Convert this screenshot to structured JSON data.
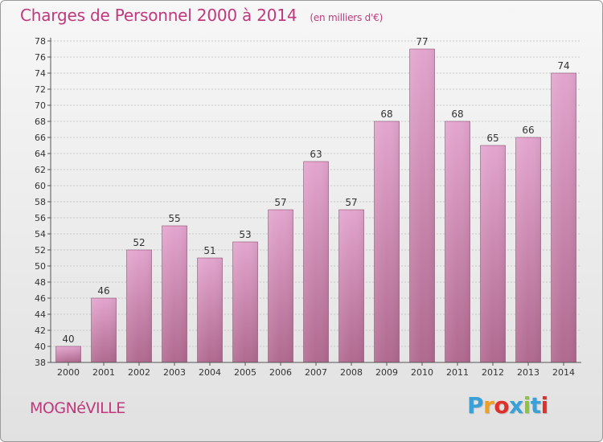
{
  "chart_data": {
    "type": "bar",
    "title": "Charges de Personnel 2000 à 2014",
    "subtitle": "(en milliers d'€)",
    "categories": [
      "2000",
      "2001",
      "2002",
      "2003",
      "2004",
      "2005",
      "2006",
      "2007",
      "2008",
      "2009",
      "2010",
      "2011",
      "2012",
      "2013",
      "2014"
    ],
    "values": [
      40,
      46,
      52,
      55,
      51,
      53,
      57,
      63,
      57,
      68,
      77,
      68,
      65,
      66,
      74
    ],
    "ylim": [
      38,
      78
    ],
    "ytick_step": 2,
    "grid": true,
    "xlabel": "",
    "ylabel": "",
    "bar_color_top": "#e3a5ce",
    "bar_color_bottom": "#b0698f"
  },
  "location": "MOGNéVILLE",
  "brand": {
    "name": "Proxiti",
    "letters": [
      "P",
      "r",
      "o",
      "x",
      "i",
      "t",
      "i"
    ],
    "letter_colors": [
      "#3aa0d8",
      "#f0a020",
      "#e0302c",
      "#3aa0d8",
      "#8cc43c",
      "#3aa0d8",
      "#e0302c"
    ]
  },
  "colors": {
    "title": "#c0387d",
    "axis": "#333333"
  }
}
